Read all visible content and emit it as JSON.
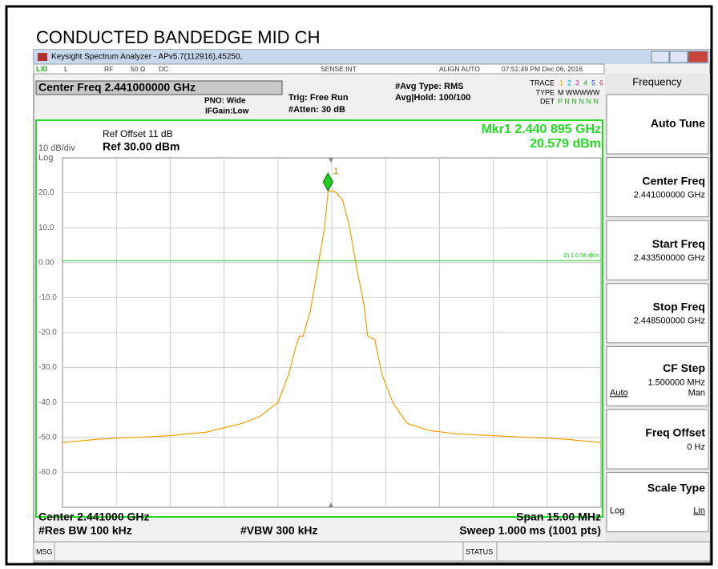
{
  "title": "CONDUCTED BANDEDGE MID CH",
  "window": {
    "title": "Keysight Spectrum Analyzer - APv5.7(112916),45250,",
    "status": [
      "LXI",
      "L",
      "RF",
      "50 Ω",
      "DC",
      "SENSE:INT",
      "ALIGN AUTO",
      "07:51:49 PM Dec 06, 2016"
    ]
  },
  "settings": {
    "center_freq": "Center Freq 2.441000000 GHz",
    "pno": "PNO: Wide",
    "ifgain": "IFGain:Low",
    "trig": "Trig: Free Run",
    "atten": "#Atten: 30 dB",
    "avg_type": "#Avg Type: RMS",
    "avg_hold": "Avg|Hold: 100/100",
    "trace_label": "TRACE",
    "trace_numbers": [
      "1",
      "2",
      "3",
      "4",
      "5",
      "6"
    ],
    "type_label": "TYPE",
    "type_value": "M WWWWW",
    "det_label": "DET",
    "det_value": "P N N N N N"
  },
  "chart_data": {
    "type": "line",
    "ref_offset": "Ref Offset 11 dB",
    "ref_level": "Ref 30.00 dBm",
    "scale": "10 dB/div",
    "scale_type": "Log",
    "marker": {
      "label": "1",
      "readout_freq": "Mkr1 2.440 895 GHz",
      "readout_level": "20.579 dBm",
      "x": 2.440895,
      "y": 20.579
    },
    "display_line": {
      "label": "DL1 0.58 dBm",
      "value": 0.58
    },
    "x": [
      2.4335,
      2.4345,
      2.4355,
      2.4365,
      2.4375,
      2.4385,
      2.439,
      2.4395,
      2.4398,
      2.44,
      2.4401,
      2.4402,
      2.4404,
      2.4406,
      2.4408,
      2.4409,
      2.441,
      2.4411,
      2.4413,
      2.4415,
      2.4417,
      2.4419,
      2.442,
      2.4422,
      2.4424,
      2.4427,
      2.4431,
      2.4437,
      2.4445,
      2.4455,
      2.4465,
      2.4475,
      2.4485
    ],
    "series": [
      {
        "color": "#f0a000",
        "values": [
          -51.5,
          -50.5,
          -50,
          -49.5,
          -48.5,
          -46,
          -44,
          -40,
          -32,
          -24,
          -21,
          -21,
          -14,
          -2,
          10,
          20.5,
          20.6,
          20.3,
          18,
          10,
          -2,
          -12,
          -21,
          -22,
          -32,
          -40,
          -46,
          -48,
          -49,
          -49.5,
          -50,
          -50.5,
          -51.5
        ]
      }
    ],
    "xlim": [
      2.4335,
      2.4485
    ],
    "ylim": [
      -70,
      30
    ],
    "yticks": [
      {
        "value": 20,
        "label": "20.0"
      },
      {
        "value": 10,
        "label": "10.0"
      },
      {
        "value": 0,
        "label": "0.00"
      },
      {
        "value": -10,
        "label": "-10.0"
      },
      {
        "value": -20,
        "label": "-20.0"
      },
      {
        "value": -30,
        "label": "-30.0"
      },
      {
        "value": -40,
        "label": "-40.0"
      },
      {
        "value": -50,
        "label": "-50.0"
      },
      {
        "value": -60,
        "label": "-60.0"
      }
    ],
    "grid": true
  },
  "footer": {
    "center": "Center 2.441000 GHz",
    "span": "Span 15.00 MHz",
    "rbw": "#Res BW 100 kHz",
    "vbw": "#VBW 300 kHz",
    "sweep": "Sweep  1.000 ms (1001 pts)"
  },
  "softkeys": {
    "header": "Frequency",
    "keys": [
      {
        "label": "Auto Tune"
      },
      {
        "label": "Center Freq",
        "value": "2.441000000 GHz"
      },
      {
        "label": "Start Freq",
        "value": "2.433500000 GHz"
      },
      {
        "label": "Stop Freq",
        "value": "2.448500000 GHz"
      },
      {
        "label": "CF Step",
        "value": "1.500000 MHz",
        "left": "Auto",
        "right": "Man"
      },
      {
        "label": "Freq Offset",
        "value": "0 Hz"
      },
      {
        "label": "Scale Type",
        "left": "Log",
        "right": "Lin"
      }
    ]
  },
  "statusbar": {
    "msg": "MSG",
    "status": "STATUS"
  }
}
